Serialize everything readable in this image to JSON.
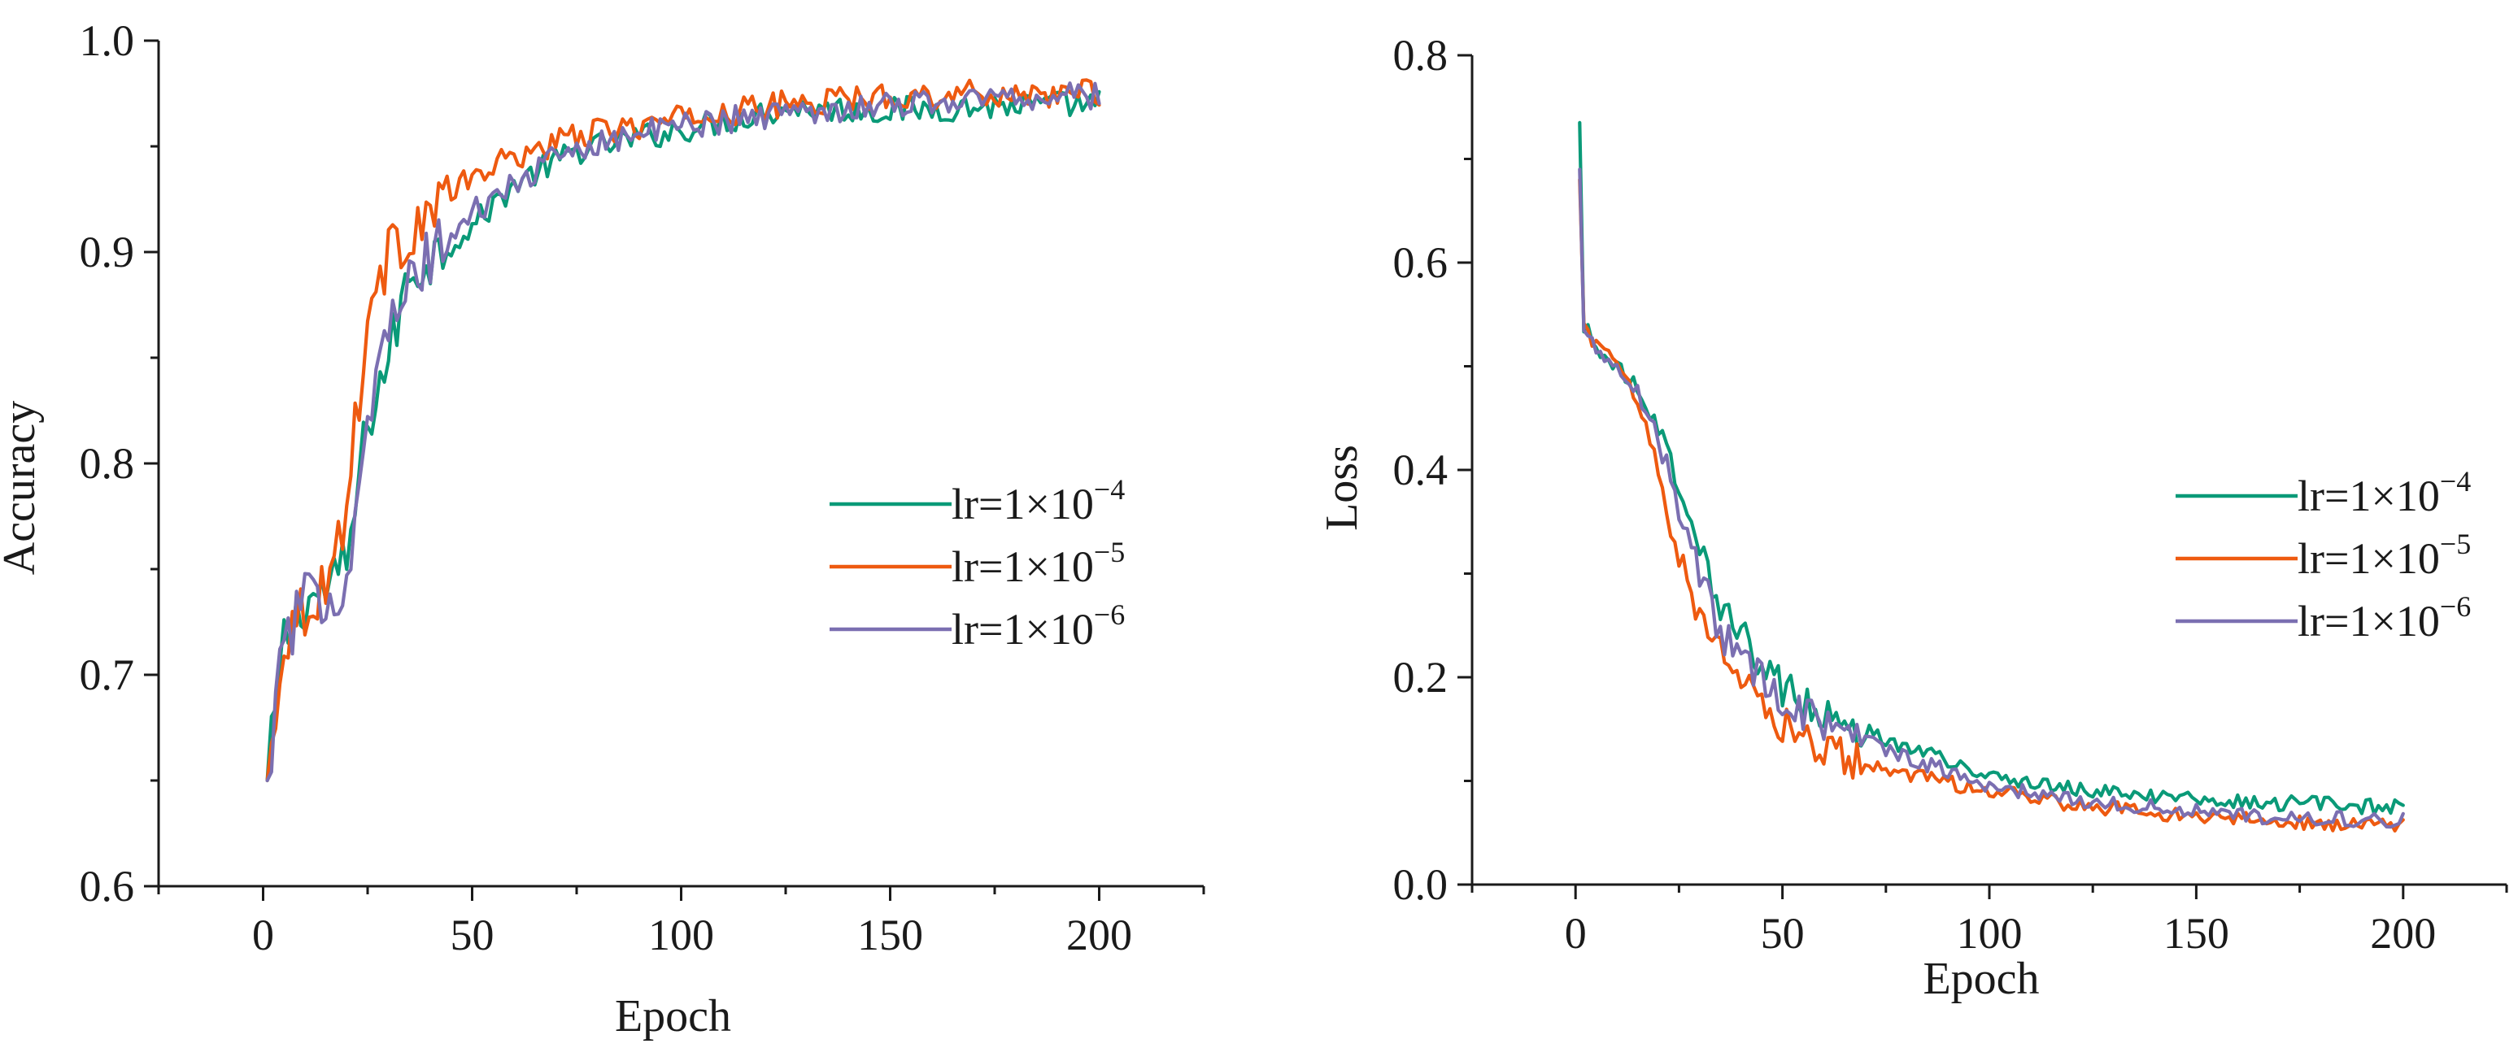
{
  "colors": {
    "green": "#0a9a78",
    "orange": "#ee5a10",
    "purple": "#7b6fb1"
  },
  "legend": [
    {
      "text": "lr=1×10",
      "exponent": "−4",
      "color": "#0a9a78"
    },
    {
      "text": "lr=1×10",
      "exponent": "−5",
      "color": "#ee5a10"
    },
    {
      "text": "lr=1×10",
      "exponent": "−6",
      "color": "#7b6fb1"
    }
  ],
  "chart_data": [
    {
      "type": "line",
      "name": "accuracy",
      "xlabel": "Epoch",
      "ylabel": "Accuracy",
      "xlim": [
        -25,
        225
      ],
      "ylim": [
        0.6,
        1.0
      ],
      "xticks": [
        0,
        50,
        100,
        150,
        200
      ],
      "xtick_labels": [
        "0",
        "50",
        "100",
        "150",
        "200"
      ],
      "yticks": [
        0.6,
        0.7,
        0.8,
        0.9,
        1.0
      ],
      "ytick_labels": [
        "0.6",
        "0.7",
        "0.8",
        "0.9",
        "1.0"
      ],
      "x": [
        1,
        5,
        10,
        15,
        20,
        25,
        30,
        35,
        40,
        50,
        60,
        75,
        100,
        125,
        150,
        175,
        200
      ],
      "series": [
        {
          "name": "lr=1×10^−4",
          "color": "#0a9a78",
          "values": [
            0.65,
            0.716,
            0.735,
            0.74,
            0.752,
            0.82,
            0.85,
            0.89,
            0.897,
            0.912,
            0.932,
            0.948,
            0.958,
            0.968,
            0.967,
            0.969,
            0.97
          ]
        },
        {
          "name": "lr=1×10^−5",
          "color": "#ee5a10",
          "values": [
            0.65,
            0.718,
            0.733,
            0.742,
            0.78,
            0.87,
            0.898,
            0.91,
            0.92,
            0.935,
            0.945,
            0.955,
            0.963,
            0.97,
            0.974,
            0.975,
            0.975
          ]
        },
        {
          "name": "lr=1×10^−6",
          "color": "#7b6fb1",
          "values": [
            0.65,
            0.716,
            0.734,
            0.738,
            0.745,
            0.825,
            0.86,
            0.885,
            0.898,
            0.918,
            0.932,
            0.95,
            0.96,
            0.966,
            0.97,
            0.973,
            0.974
          ]
        }
      ]
    },
    {
      "type": "line",
      "name": "loss",
      "xlabel": "Epoch",
      "ylabel": "Loss",
      "xlim": [
        -25,
        225
      ],
      "ylim": [
        0.0,
        0.8
      ],
      "xticks": [
        0,
        50,
        100,
        150,
        200
      ],
      "xtick_labels": [
        "0",
        "50",
        "100",
        "150",
        "200"
      ],
      "yticks": [
        0.0,
        0.2,
        0.4,
        0.6,
        0.8
      ],
      "ytick_labels": [
        "0.0",
        "0.2",
        "0.4",
        "0.6",
        "0.8"
      ],
      "x": [
        1,
        2,
        5,
        10,
        15,
        20,
        25,
        30,
        35,
        40,
        50,
        60,
        75,
        100,
        125,
        150,
        175,
        200
      ],
      "series": [
        {
          "name": "lr=1×10^−4",
          "color": "#0a9a78",
          "values": [
            0.735,
            0.54,
            0.518,
            0.5,
            0.48,
            0.44,
            0.39,
            0.33,
            0.27,
            0.24,
            0.19,
            0.165,
            0.14,
            0.105,
            0.09,
            0.082,
            0.078,
            0.074
          ]
        },
        {
          "name": "lr=1×10^−5",
          "color": "#ee5a10",
          "values": [
            0.68,
            0.54,
            0.52,
            0.5,
            0.47,
            0.4,
            0.32,
            0.26,
            0.225,
            0.2,
            0.155,
            0.13,
            0.11,
            0.09,
            0.075,
            0.066,
            0.06,
            0.058
          ]
        },
        {
          "name": "lr=1×10^−6",
          "color": "#7b6fb1",
          "values": [
            0.69,
            0.54,
            0.518,
            0.498,
            0.475,
            0.43,
            0.365,
            0.3,
            0.245,
            0.215,
            0.18,
            0.155,
            0.13,
            0.095,
            0.08,
            0.07,
            0.064,
            0.062
          ]
        }
      ]
    }
  ]
}
